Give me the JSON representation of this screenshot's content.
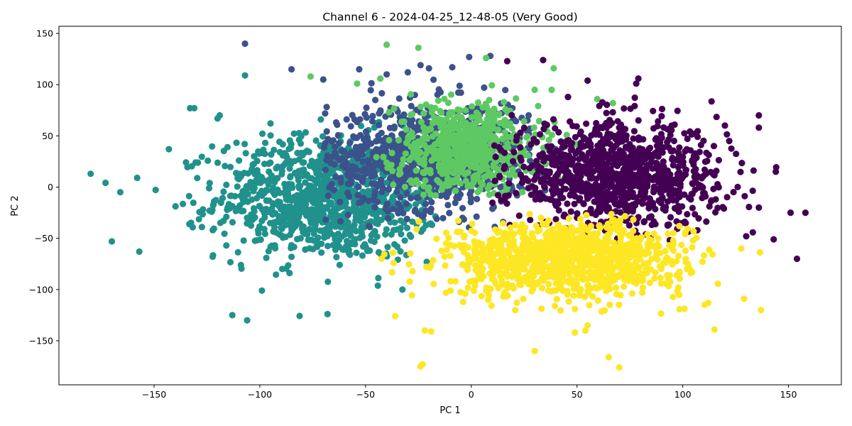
{
  "chart_data": {
    "type": "scatter",
    "title": "Channel 6 - 2024-04-25_12-48-05 (Very Good)",
    "xlabel": "PC 1",
    "ylabel": "PC 2",
    "xlim": [
      -195,
      175
    ],
    "ylim": [
      -193,
      157
    ],
    "xticks": [
      -150,
      -100,
      -50,
      0,
      50,
      100,
      150
    ],
    "yticks": [
      -150,
      -100,
      -50,
      0,
      50,
      100,
      150
    ],
    "tick_labels_x": [
      "−150",
      "−100",
      "−50",
      "0",
      "50",
      "100",
      "150"
    ],
    "tick_labels_y": [
      "−150",
      "−100",
      "−50",
      "0",
      "50",
      "100",
      "150"
    ],
    "grid": false,
    "legend": "none",
    "series": [
      {
        "color": "#21918c",
        "cluster": {
          "center": [
            -68,
            -10
          ],
          "spread": [
            26,
            30
          ],
          "n": 1100,
          "xrange": [
            -190,
            -15
          ],
          "yrange": [
            -135,
            80
          ]
        },
        "points": [
          [
            -180,
            13
          ],
          [
            -166,
            -5
          ],
          [
            -158,
            9
          ],
          [
            -157,
            -63
          ],
          [
            -170,
            -53
          ],
          [
            -143,
            37
          ],
          [
            -133,
            77
          ],
          [
            -131,
            77
          ],
          [
            -119,
            70
          ],
          [
            -113,
            -125
          ],
          [
            -106,
            -130
          ],
          [
            -107,
            109
          ],
          [
            -99,
            -101
          ],
          [
            -68,
            -124
          ],
          [
            -120,
            67
          ]
        ]
      },
      {
        "color": "#3b528b",
        "cluster": {
          "center": [
            -20,
            30
          ],
          "spread": [
            24,
            26
          ],
          "n": 900,
          "xrange": [
            -70,
            40
          ],
          "yrange": [
            -40,
            110
          ]
        },
        "points": [
          [
            -107,
            140
          ],
          [
            -85,
            115
          ],
          [
            -70,
            105
          ],
          [
            -24,
            119
          ],
          [
            -20,
            116
          ],
          [
            -9,
            117
          ],
          [
            -1,
            127
          ],
          [
            9,
            128
          ],
          [
            -30,
            112
          ],
          [
            -40,
            110
          ],
          [
            -53,
            115
          ]
        ]
      },
      {
        "color": "#5ec962",
        "cluster": {
          "center": [
            -2,
            38
          ],
          "spread": [
            17,
            22
          ],
          "n": 650,
          "xrange": [
            -45,
            75
          ],
          "yrange": [
            -10,
            100
          ]
        },
        "points": [
          [
            -40,
            139
          ],
          [
            -25,
            136
          ],
          [
            -76,
            108
          ],
          [
            -43,
            106
          ],
          [
            -54,
            101
          ],
          [
            7,
            126
          ],
          [
            39,
            116
          ],
          [
            67,
            82
          ],
          [
            73,
            12
          ],
          [
            38,
            95
          ],
          [
            30,
            95
          ]
        ]
      },
      {
        "color": "#440154",
        "cluster": {
          "center": [
            68,
            10
          ],
          "spread": [
            25,
            26
          ],
          "n": 1050,
          "xrange": [
            10,
            150
          ],
          "yrange": [
            -55,
            115
          ]
        },
        "points": [
          [
            34,
            124
          ],
          [
            17,
            123
          ],
          [
            55,
            104
          ],
          [
            79,
            106
          ],
          [
            78,
            101
          ],
          [
            136,
            70
          ],
          [
            136,
            58
          ],
          [
            144,
            15
          ],
          [
            151,
            -25
          ],
          [
            158,
            -25
          ],
          [
            154,
            -70
          ],
          [
            143,
            -51
          ],
          [
            136,
            -20
          ],
          [
            130,
            -48
          ],
          [
            122,
            45
          ]
        ]
      },
      {
        "color": "#fde725",
        "cluster": {
          "center": [
            45,
            -70
          ],
          "spread": [
            28,
            18
          ],
          "n": 1100,
          "xrange": [
            -55,
            140
          ],
          "yrange": [
            -145,
            -25
          ]
        },
        "points": [
          [
            -24,
            -175
          ],
          [
            -23,
            -173
          ],
          [
            30,
            -160
          ],
          [
            65,
            -166
          ],
          [
            70,
            -176
          ],
          [
            -19,
            -141
          ],
          [
            49,
            -142
          ],
          [
            54,
            -140
          ],
          [
            55,
            -135
          ],
          [
            115,
            -139
          ],
          [
            112,
            -113
          ],
          [
            129,
            -109
          ],
          [
            137,
            -120
          ],
          [
            -36,
            -126
          ],
          [
            -22,
            -140
          ]
        ]
      }
    ]
  }
}
